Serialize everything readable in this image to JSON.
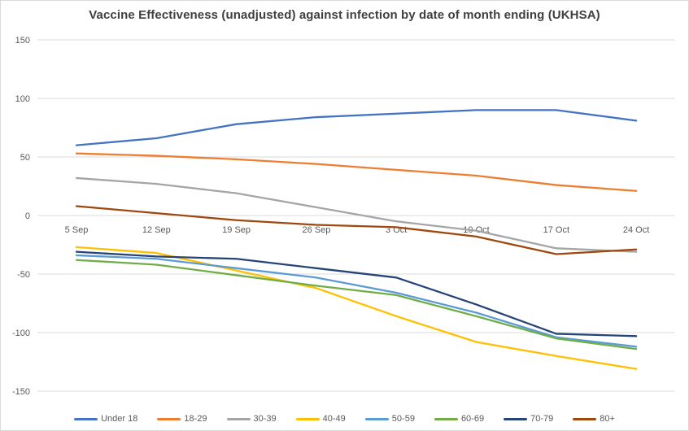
{
  "chart_data": {
    "type": "line",
    "title": "Vaccine Effectiveness (unadjusted) against infection by date of month ending (UKHSA)",
    "categories": [
      "5 Sep",
      "12 Sep",
      "19 Sep",
      "26 Sep",
      "3 Oct",
      "10 Oct",
      "17 Oct",
      "24 Oct"
    ],
    "series": [
      {
        "name": "Under 18",
        "color": "#4472C4",
        "values": [
          60,
          66,
          78,
          84,
          87,
          90,
          90,
          81
        ]
      },
      {
        "name": "18-29",
        "color": "#ED7D31",
        "values": [
          53,
          51,
          48,
          44,
          39,
          34,
          26,
          21
        ]
      },
      {
        "name": "30-39",
        "color": "#A5A5A5",
        "values": [
          32,
          27,
          19,
          7,
          -5,
          -13,
          -28,
          -31
        ]
      },
      {
        "name": "40-49",
        "color": "#FFC000",
        "values": [
          -27,
          -32,
          -47,
          -62,
          -86,
          -108,
          -120,
          -131
        ]
      },
      {
        "name": "50-59",
        "color": "#5B9BD5",
        "values": [
          -34,
          -37,
          -45,
          -53,
          -66,
          -83,
          -104,
          -112
        ]
      },
      {
        "name": "60-69",
        "color": "#70AD47",
        "values": [
          -38,
          -42,
          -51,
          -60,
          -68,
          -86,
          -105,
          -114
        ]
      },
      {
        "name": "70-79",
        "color": "#264478",
        "values": [
          -31,
          -35,
          -37,
          -45,
          -53,
          -76,
          -101,
          -103
        ]
      },
      {
        "name": "80+",
        "color": "#9E480E",
        "values": [
          8,
          2,
          -4,
          -8,
          -10,
          -18,
          -33,
          -29
        ]
      }
    ],
    "xlabel": "",
    "ylabel": "",
    "ylim": [
      -150,
      150
    ],
    "y_ticks": [
      150,
      100,
      50,
      0,
      -50,
      -100,
      -150
    ],
    "grid": "horizontal",
    "legend_position": "bottom",
    "x_labels_position": "below-zero-line",
    "gridline_color": "#D9D9D9",
    "tick_label_color": "#595959",
    "title_color": "#3F3F3F",
    "background_color": "#FFFFFF",
    "border_color": "#D9D9D9"
  }
}
